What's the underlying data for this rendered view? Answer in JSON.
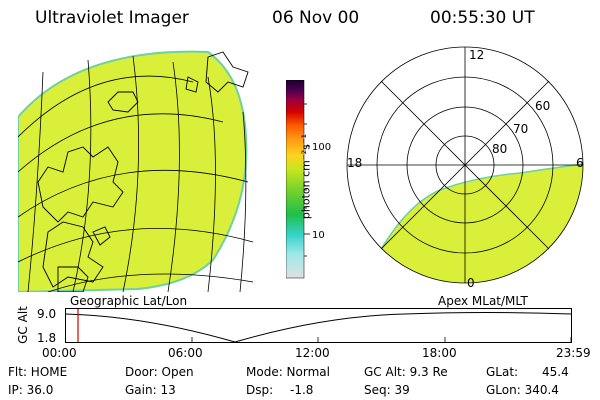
{
  "header": {
    "instrument": "Ultraviolet Imager",
    "date": "06 Nov 00",
    "time": "00:55:30 UT"
  },
  "colorbar": {
    "unit_label": "photon cm⁻²s⁻¹",
    "ticks": [
      "100",
      "10"
    ],
    "gradient_colors": [
      "#d9d9d9",
      "#9ee8e8",
      "#34d3c8",
      "#1fbf4a",
      "#7bd32a",
      "#c8e61e",
      "#ffd21e",
      "#ff9a14",
      "#ff5a00",
      "#d40000",
      "#9a0040",
      "#4a0050",
      "#1a0030"
    ]
  },
  "left_map": {
    "projection_label": "Geographic Lat/Lon",
    "fill_color": "#d9ef3a",
    "edge_color": "#6fd0a0"
  },
  "polar_plot": {
    "projection_label": "Apex MLat/MLT",
    "mlt_labels": {
      "top": "12",
      "left": "18",
      "right": "6",
      "bottom": "0"
    },
    "lat_labels": [
      "60",
      "70",
      "80"
    ],
    "fill_color": "#d9ef3a"
  },
  "altitude_plot": {
    "ylabel": "GC Alt",
    "yticks": [
      "9.0",
      "1.8"
    ],
    "xticks": [
      "00:00",
      "06:00",
      "12:00",
      "18:00",
      "23:59"
    ],
    "marker_time": "00:55",
    "marker_color": "#d40000"
  },
  "status": {
    "flt_label": "Flt: HOME",
    "ip_label": "IP: 36.0",
    "door_label": "Door: Open",
    "gain_label": "Gain: 13",
    "mode_label": "Mode: Normal",
    "dsp_label": "Dsp:",
    "dsp_value": "-1.8",
    "gcalt_label": "GC Alt: 9.3 Re",
    "seq_label": "Seq: 39",
    "glat_label": "GLat:",
    "glat_value": "45.4",
    "glon_label": "GLon: 340.4"
  }
}
